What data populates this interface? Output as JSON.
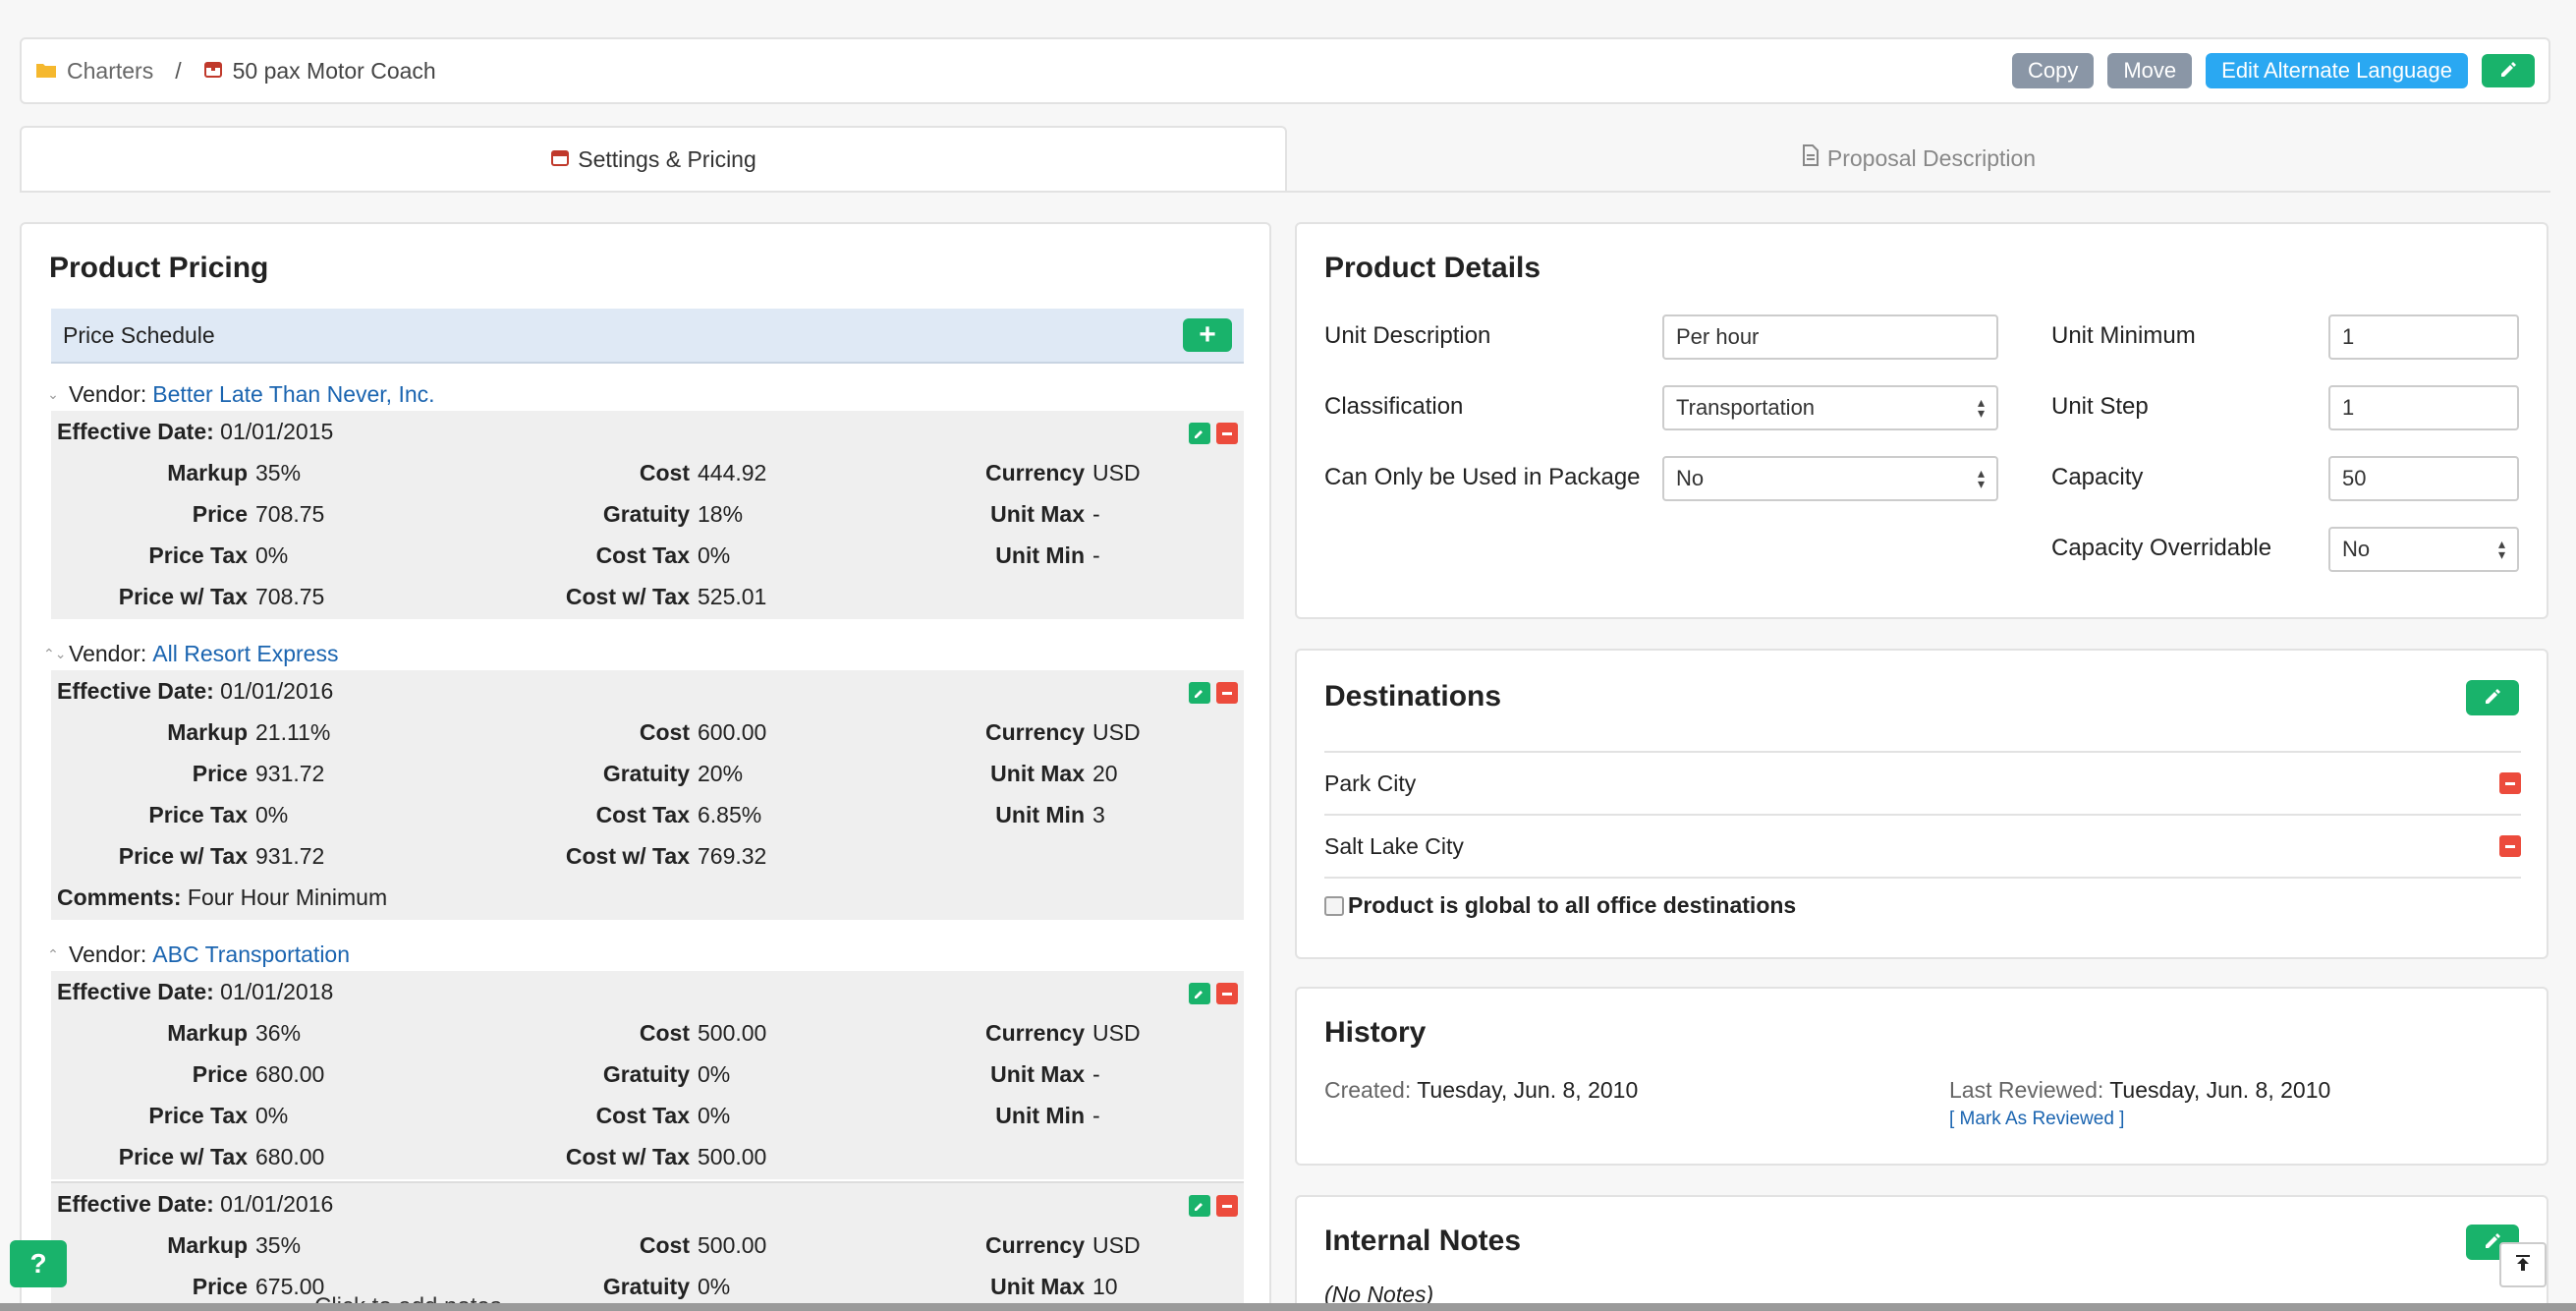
{
  "breadcrumb": {
    "root": "Charters",
    "separator": "/",
    "current": "50 pax Motor Coach"
  },
  "top_actions": {
    "copy": "Copy",
    "move": "Move",
    "alt_language": "Edit Alternate Language"
  },
  "tabs": {
    "settings": "Settings & Pricing",
    "proposal": "Proposal Description"
  },
  "pricing": {
    "title": "Product Pricing",
    "schedule_label": "Price Schedule",
    "add_symbol": "+",
    "vendor_prefix": "Vendor:",
    "effective_label": "Effective Date:",
    "labels": {
      "markup": "Markup",
      "price": "Price",
      "price_tax": "Price Tax",
      "price_w_tax": "Price w/ Tax",
      "cost": "Cost",
      "gratuity": "Gratuity",
      "cost_tax": "Cost Tax",
      "cost_w_tax": "Cost w/ Tax",
      "currency": "Currency",
      "unit_max": "Unit Max",
      "unit_min": "Unit Min",
      "comments": "Comments:"
    },
    "vendors": [
      {
        "name": "Better Late Than Never, Inc.",
        "entries": [
          {
            "date": "01/01/2015",
            "markup": "35%",
            "price": "708.75",
            "price_tax": "0%",
            "price_w_tax": "708.75",
            "cost": "444.92",
            "gratuity": "18%",
            "cost_tax": "0%",
            "cost_w_tax": "525.01",
            "currency": "USD",
            "unit_max": "-",
            "unit_min": "-"
          }
        ]
      },
      {
        "name": "All Resort Express",
        "entries": [
          {
            "date": "01/01/2016",
            "markup": "21.11%",
            "price": "931.72",
            "price_tax": "0%",
            "price_w_tax": "931.72",
            "cost": "600.00",
            "gratuity": "20%",
            "cost_tax": "6.85%",
            "cost_w_tax": "769.32",
            "currency": "USD",
            "unit_max": "20",
            "unit_min": "3",
            "comments": "Four Hour Minimum"
          }
        ]
      },
      {
        "name": "ABC Transportation",
        "entries": [
          {
            "date": "01/01/2018",
            "markup": "36%",
            "price": "680.00",
            "price_tax": "0%",
            "price_w_tax": "680.00",
            "cost": "500.00",
            "gratuity": "0%",
            "cost_tax": "0%",
            "cost_w_tax": "500.00",
            "currency": "USD",
            "unit_max": "-",
            "unit_min": "-"
          },
          {
            "date": "01/01/2016",
            "markup": "35%",
            "price": "675.00",
            "cost": "500.00",
            "gratuity": "0%",
            "currency": "USD",
            "unit_max": "10"
          }
        ]
      }
    ]
  },
  "details": {
    "title": "Product Details",
    "unit_description_label": "Unit Description",
    "unit_description_value": "Per hour",
    "classification_label": "Classification",
    "classification_value": "Transportation",
    "package_label": "Can Only be Used in Package",
    "package_value": "No",
    "unit_minimum_label": "Unit Minimum",
    "unit_minimum_value": "1",
    "unit_step_label": "Unit Step",
    "unit_step_value": "1",
    "capacity_label": "Capacity",
    "capacity_value": "50",
    "capacity_override_label": "Capacity Overridable",
    "capacity_override_value": "No"
  },
  "destinations": {
    "title": "Destinations",
    "items": [
      "Park City",
      "Salt Lake City"
    ],
    "global_label": "Product is global to all office destinations"
  },
  "history": {
    "title": "History",
    "created_label": "Created:",
    "created_value": "Tuesday, Jun. 8, 2010",
    "reviewed_label": "Last Reviewed:",
    "reviewed_value": "Tuesday, Jun. 8, 2010",
    "mark_reviewed": "[ Mark As Reviewed ]"
  },
  "notes": {
    "title": "Internal Notes",
    "empty": "(No Notes)",
    "overlay_text": "Click to add notes"
  },
  "help": {
    "label": "?"
  },
  "colors": {
    "accent_green": "#19b36b",
    "accent_blue": "#2aa8f2",
    "danger_red": "#ec4b3c",
    "link_blue": "#1a64b0"
  }
}
